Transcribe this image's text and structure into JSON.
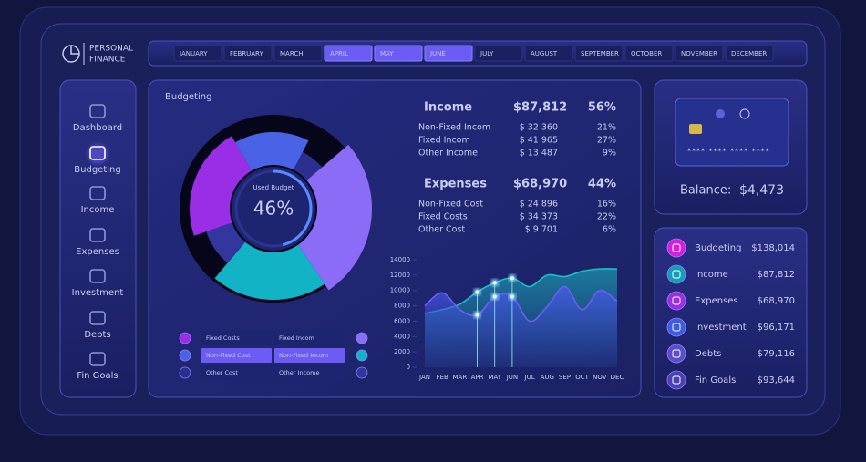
{
  "header": {
    "title_line1": "PERSONAL",
    "title_line2": "FINANCE"
  },
  "months": [
    {
      "label": "JANUARY",
      "selected": false
    },
    {
      "label": "FEBRUARY",
      "selected": false
    },
    {
      "label": "MARCH",
      "selected": false
    },
    {
      "label": "APRIL",
      "selected": true
    },
    {
      "label": "MAY",
      "selected": true
    },
    {
      "label": "JUNE",
      "selected": true
    },
    {
      "label": "JULY",
      "selected": false
    },
    {
      "label": "AUGUST",
      "selected": false
    },
    {
      "label": "SEPTEMBER",
      "selected": false
    },
    {
      "label": "OCTOBER",
      "selected": false
    },
    {
      "label": "NOVEMBER",
      "selected": false
    },
    {
      "label": "DECEMBER",
      "selected": false
    }
  ],
  "sidebar": [
    {
      "label": "Dashboard",
      "active": false
    },
    {
      "label": "Budgeting",
      "active": true
    },
    {
      "label": "Income",
      "active": false
    },
    {
      "label": "Expenses",
      "active": false
    },
    {
      "label": "Investment",
      "active": false
    },
    {
      "label": "Debts",
      "active": false
    },
    {
      "label": "Fin Goals",
      "active": false
    }
  ],
  "budgeting": {
    "title": "Budgeting",
    "donut": {
      "center_label": "Used Budget",
      "center_value": 46,
      "center_value_label": "46%"
    },
    "segments": [
      {
        "name": "Fixed Costs",
        "color": "#9a2de6",
        "value": 34373,
        "highlighted": false
      },
      {
        "name": "Non-Fixed Cost",
        "color": "#4a63e6",
        "value": 24896,
        "highlighted": true
      },
      {
        "name": "Other Cost",
        "color": "#2d2f8f",
        "value": 9701,
        "highlighted": false
      },
      {
        "name": "Fixed Incom",
        "color": "#8a6cf6",
        "value": 41965,
        "highlighted": false
      },
      {
        "name": "Non-Fixed Incom",
        "color": "#13b3c6",
        "value": 32360,
        "highlighted": true
      },
      {
        "name": "Other Income",
        "color": "#33369c",
        "value": 13487,
        "highlighted": false
      }
    ]
  },
  "income": {
    "title": "Income",
    "total": 87812,
    "total_label": "$87,812",
    "percent": 56,
    "percent_label": "56%",
    "items": [
      {
        "name": "Non-Fixed Incom",
        "value": 32360,
        "value_label": "$ 32 360",
        "percent": 21,
        "percent_label": "21%"
      },
      {
        "name": "Fixed Incom",
        "value": 41965,
        "value_label": "$ 41 965",
        "percent": 27,
        "percent_label": "27%"
      },
      {
        "name": "Other Income",
        "value": 13487,
        "value_label": "$ 13 487",
        "percent": 9,
        "percent_label": "9%"
      }
    ]
  },
  "expenses": {
    "title": "Expenses",
    "total": 68970,
    "total_label": "$68,970",
    "percent": 44,
    "percent_label": "44%",
    "items": [
      {
        "name": "Non-Fixed Cost",
        "value": 24896,
        "value_label": "$ 24 896",
        "percent": 16,
        "percent_label": "16%"
      },
      {
        "name": "Fixed Costs",
        "value": 34373,
        "value_label": "$ 34 373",
        "percent": 22,
        "percent_label": "22%"
      },
      {
        "name": "Other Cost",
        "value": 9701,
        "value_label": "$ 9 701",
        "percent": 6,
        "percent_label": "6%"
      }
    ]
  },
  "area_chart": {
    "type": "area",
    "categories": [
      "JAN",
      "FEB",
      "MAR",
      "APR",
      "MAY",
      "JUN",
      "JUL",
      "AUG",
      "SEP",
      "OCT",
      "NOV",
      "DEC"
    ],
    "ylim": [
      0,
      14000
    ],
    "yticks": [
      0,
      2000,
      4000,
      6000,
      8000,
      10000,
      12000,
      14000
    ],
    "series": [
      {
        "color": "#19c0c8",
        "values": [
          7000,
          7500,
          8200,
          9800,
          11000,
          11600,
          10500,
          12000,
          11800,
          12500,
          12800,
          12800
        ]
      },
      {
        "color": "#6f5cf2",
        "values": [
          8000,
          9700,
          7500,
          6800,
          9200,
          9200,
          6000,
          7900,
          10500,
          7500,
          10000,
          8600
        ]
      }
    ]
  },
  "card": {
    "number": "**** **** **** ****",
    "balance_label": "Balance:",
    "balance": 4473,
    "balance_value_label": "$4,473"
  },
  "summary": [
    {
      "name": "Budgeting",
      "value": 138014,
      "value_label": "$138,014",
      "color": "#d51fd8"
    },
    {
      "name": "Income",
      "value": 87812,
      "value_label": "$87,812",
      "color": "#139fb8"
    },
    {
      "name": "Expenses",
      "value": 68970,
      "value_label": "$68,970",
      "color": "#9b2ee2"
    },
    {
      "name": "Investment",
      "value": 96171,
      "value_label": "$96,171",
      "color": "#3d5ce0"
    },
    {
      "name": "Debts",
      "value": 79116,
      "value_label": "$79,116",
      "color": "#5a4fc8"
    },
    {
      "name": "Fin Goals",
      "value": 93644,
      "value_label": "$93,644",
      "color": "#4a42b0"
    }
  ]
}
